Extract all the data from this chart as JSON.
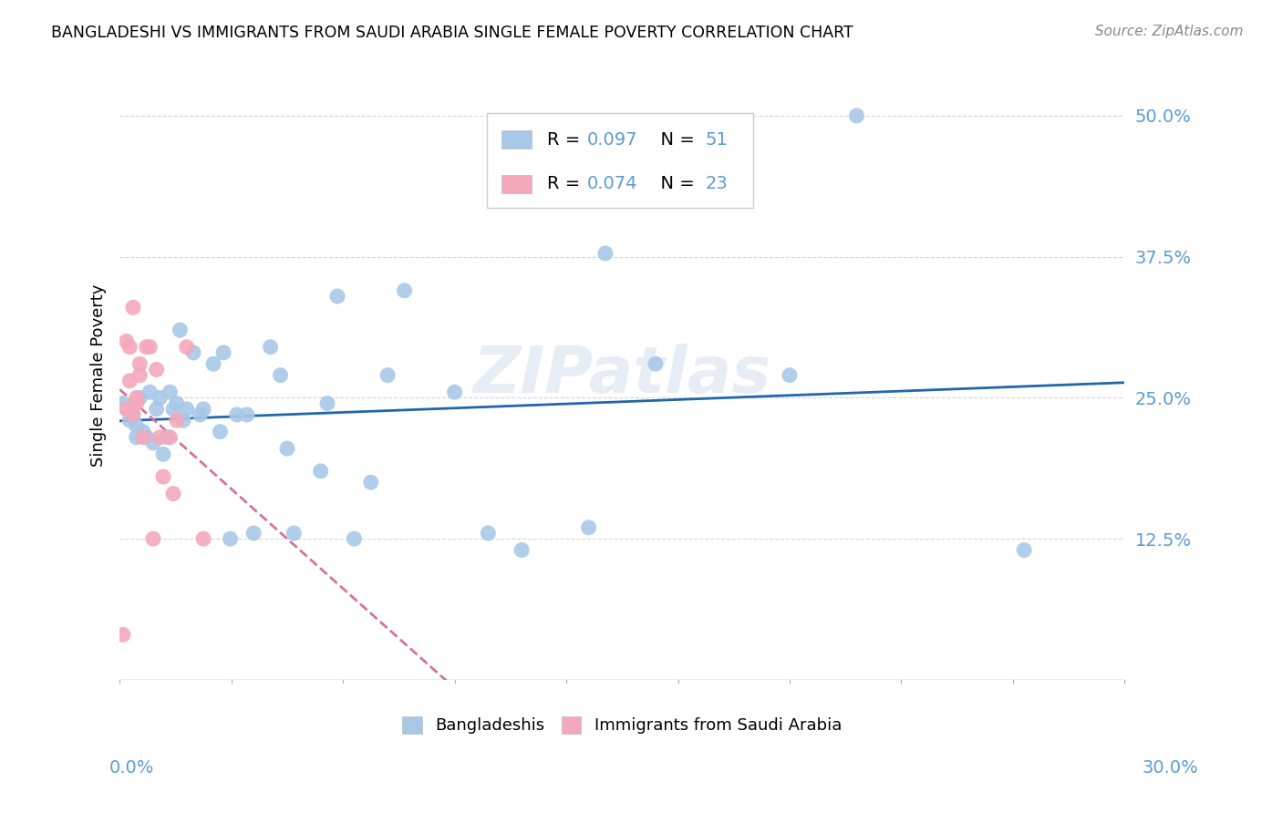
{
  "title": "BANGLADESHI VS IMMIGRANTS FROM SAUDI ARABIA SINGLE FEMALE POVERTY CORRELATION CHART",
  "source": "Source: ZipAtlas.com",
  "ylabel": "Single Female Poverty",
  "ytick_labels": [
    "12.5%",
    "25.0%",
    "37.5%",
    "50.0%"
  ],
  "ytick_values": [
    0.125,
    0.25,
    0.375,
    0.5
  ],
  "xlim": [
    0.0,
    0.3
  ],
  "ylim": [
    0.0,
    0.54
  ],
  "blue_color": "#a8c8e8",
  "pink_color": "#f4a8bc",
  "trendline_blue_color": "#2166ac",
  "trendline_pink_color": "#d4729a",
  "tick_color": "#5b9bd5",
  "grid_color": "#cccccc",
  "legend_r1": "R = 0.097",
  "legend_n1": "N = 51",
  "legend_r2": "R = 0.074",
  "legend_n2": "N = 23",
  "bangladeshis_x": [
    0.001,
    0.002,
    0.003,
    0.004,
    0.005,
    0.005,
    0.006,
    0.007,
    0.008,
    0.009,
    0.01,
    0.011,
    0.012,
    0.013,
    0.014,
    0.015,
    0.016,
    0.017,
    0.018,
    0.019,
    0.02,
    0.022,
    0.024,
    0.025,
    0.028,
    0.03,
    0.031,
    0.033,
    0.035,
    0.038,
    0.04,
    0.045,
    0.048,
    0.05,
    0.052,
    0.06,
    0.062,
    0.065,
    0.07,
    0.075,
    0.08,
    0.085,
    0.1,
    0.11,
    0.12,
    0.14,
    0.145,
    0.16,
    0.2,
    0.22,
    0.27
  ],
  "bangladeshis_y": [
    0.245,
    0.24,
    0.23,
    0.235,
    0.225,
    0.215,
    0.25,
    0.22,
    0.215,
    0.255,
    0.21,
    0.24,
    0.25,
    0.2,
    0.215,
    0.255,
    0.24,
    0.245,
    0.31,
    0.23,
    0.24,
    0.29,
    0.235,
    0.24,
    0.28,
    0.22,
    0.29,
    0.125,
    0.235,
    0.235,
    0.13,
    0.295,
    0.27,
    0.205,
    0.13,
    0.185,
    0.245,
    0.34,
    0.125,
    0.175,
    0.27,
    0.345,
    0.255,
    0.13,
    0.115,
    0.135,
    0.378,
    0.28,
    0.27,
    0.5,
    0.115
  ],
  "saudi_x": [
    0.001,
    0.002,
    0.002,
    0.003,
    0.003,
    0.004,
    0.004,
    0.005,
    0.005,
    0.006,
    0.006,
    0.007,
    0.008,
    0.009,
    0.01,
    0.011,
    0.012,
    0.013,
    0.015,
    0.016,
    0.017,
    0.02,
    0.025
  ],
  "saudi_y": [
    0.04,
    0.24,
    0.3,
    0.265,
    0.295,
    0.235,
    0.33,
    0.245,
    0.25,
    0.27,
    0.28,
    0.215,
    0.295,
    0.295,
    0.125,
    0.275,
    0.215,
    0.18,
    0.215,
    0.165,
    0.23,
    0.295,
    0.125
  ]
}
